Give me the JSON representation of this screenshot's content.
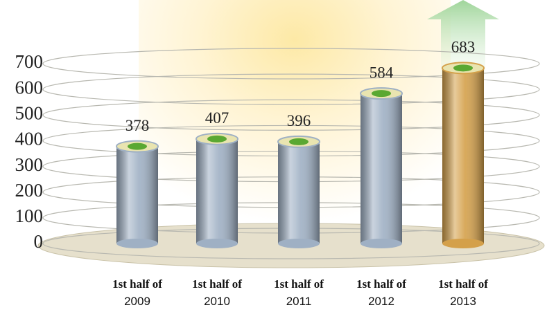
{
  "chart_data": {
    "type": "bar",
    "categories": [
      "1st half of 2009",
      "1st half of 2010",
      "1st half of 2011",
      "1st half of 2012",
      "1st half of 2013"
    ],
    "values": [
      378,
      407,
      396,
      584,
      683
    ],
    "colors": [
      "#9fb0c4",
      "#9fb0c4",
      "#9fb0c4",
      "#9fb0c4",
      "#d4a04a"
    ],
    "ylim": [
      0,
      700
    ],
    "yticks": [
      0,
      100,
      200,
      300,
      400,
      500,
      600,
      700
    ],
    "grid": true
  }
}
